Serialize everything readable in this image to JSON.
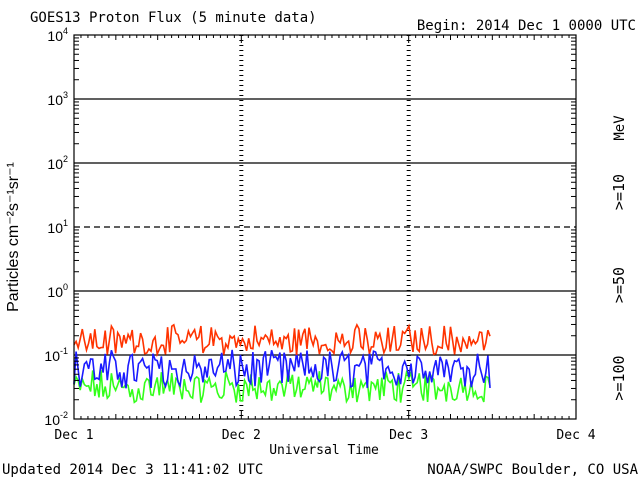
{
  "header": {
    "title": "GOES13 Proton Flux (5 minute data)",
    "begin": "Begin: 2014 Dec 1 0000 UTC"
  },
  "footer": {
    "updated": "Updated 2014 Dec  3 11:41:02 UTC",
    "credit": "NOAA/SWPC Boulder, CO USA"
  },
  "colors": {
    "gt10": "#ff3300",
    "gt50": "#1a1aff",
    "gt100": "#33ff1a",
    "axis": "#000000"
  },
  "chart_data": {
    "type": "line",
    "title": "GOES13 Proton Flux (5 minute data)",
    "xlabel": "Universal Time",
    "ylabel": "Particles cm⁻²s⁻¹sr⁻¹",
    "yscale": "log",
    "ylim": [
      0.01,
      10000
    ],
    "xlim": [
      "2014-12-01T00:00",
      "2014-12-04T00:00"
    ],
    "x_ticks": [
      "Dec 1",
      "Dec 2",
      "Dec 3",
      "Dec 4"
    ],
    "y_ticks": [
      {
        "base": "10",
        "exp": "4",
        "value": 10000
      },
      {
        "base": "10",
        "exp": "3",
        "value": 1000
      },
      {
        "base": "10",
        "exp": "2",
        "value": 100
      },
      {
        "base": "10",
        "exp": "1",
        "value": 10
      },
      {
        "base": "10",
        "exp": "0",
        "value": 1
      },
      {
        "base": "10",
        "exp": "-1",
        "value": 0.1
      },
      {
        "base": "10",
        "exp": "-2",
        "value": 0.01
      }
    ],
    "threshold_dashed": 10,
    "unit_label": "MeV",
    "legend": [
      ">=10",
      ">=50",
      ">=100"
    ],
    "data_end": "2014-12-03T11:40",
    "series": [
      {
        "name": ">=10",
        "color": "#ff3300",
        "typical": 0.15,
        "low": 0.1,
        "high": 0.3
      },
      {
        "name": ">=50",
        "color": "#1a1aff",
        "typical": 0.06,
        "low": 0.03,
        "high": 0.12
      },
      {
        "name": ">=100",
        "color": "#33ff1a",
        "typical": 0.03,
        "low": 0.018,
        "high": 0.06
      }
    ]
  }
}
